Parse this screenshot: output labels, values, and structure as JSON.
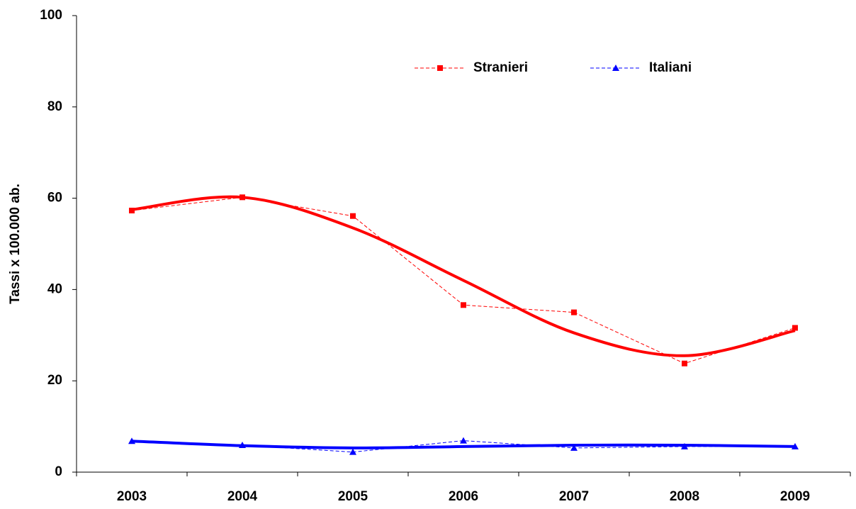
{
  "chart_data": {
    "type": "line",
    "y_label": "Tassi x 100.000 ab.",
    "categories": [
      "2003",
      "2004",
      "2005",
      "2006",
      "2007",
      "2008",
      "2009"
    ],
    "series": [
      {
        "name": "Stranieri",
        "color": "#ff0000",
        "marker": "square",
        "values": [
          57.3,
          60.2,
          56.1,
          36.6,
          35.0,
          23.8,
          31.6
        ],
        "trend": [
          57.5,
          60.2,
          53.5,
          42.0,
          30.5,
          25.5,
          31.0
        ]
      },
      {
        "name": "Italiani",
        "color": "#0000ff",
        "marker": "triangle",
        "values": [
          6.8,
          5.9,
          4.4,
          6.9,
          5.3,
          5.6,
          5.6
        ],
        "trend": [
          6.8,
          5.8,
          5.3,
          5.6,
          5.9,
          5.9,
          5.6
        ]
      }
    ],
    "ylim": [
      0,
      100
    ],
    "yticks": [
      0,
      20,
      40,
      60,
      80,
      100
    ],
    "grid": false,
    "legend": "top"
  }
}
